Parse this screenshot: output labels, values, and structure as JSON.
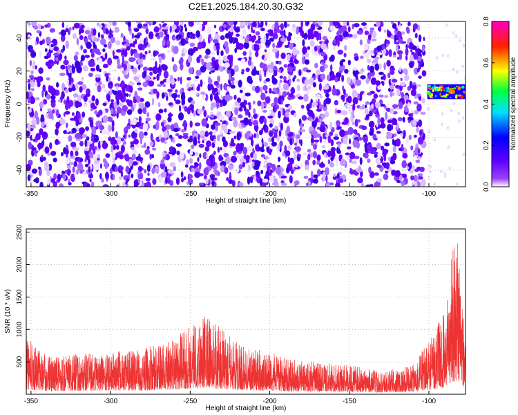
{
  "title": "C2E1.2025.184.20.30.G32",
  "chart_data": [
    {
      "type": "heatmap",
      "xlabel": "Height of straight line (km)",
      "ylabel": "Frequency (Hz)",
      "xlim": [
        -353,
        -77
      ],
      "ylim": [
        -50,
        50
      ],
      "x_ticks": [
        -350,
        -300,
        -250,
        -200,
        -150,
        -100
      ],
      "y_ticks": [
        -40,
        -20,
        0,
        20,
        40
      ],
      "grid": true,
      "colorbar": {
        "label": "Normalized spectral amplitude",
        "range": [
          0,
          0.8
        ],
        "ticks": [
          0.0,
          0.2,
          0.4,
          0.6,
          0.8
        ],
        "colors": [
          "#ffffff",
          "#6a00ff",
          "#0000ff",
          "#00ffff",
          "#00ff00",
          "#ffff00",
          "#ff0000",
          "#ff00c0"
        ]
      },
      "features": [
        {
          "x_range": [
            -353,
            -103
          ],
          "freq_range": [
            -50,
            50
          ],
          "amplitude": 0.1,
          "description_ref": "broadband noise"
        },
        {
          "x_range": [
            -101,
            -77
          ],
          "freq_range": [
            3,
            12
          ],
          "amplitude": 0.6,
          "description_ref": "signal band"
        }
      ]
    },
    {
      "type": "line",
      "xlabel": "Height of straight line (km)",
      "ylabel": "SNR (10 * v/v)",
      "xlim": [
        -353,
        -77
      ],
      "ylim": [
        0,
        2550
      ],
      "x_ticks": [
        -350,
        -300,
        -250,
        -200,
        -150,
        -100
      ],
      "y_ticks": [
        500,
        1000,
        1500,
        2000,
        2500
      ],
      "grid": true,
      "color": "#ee3333",
      "envelope": {
        "x": [
          -353,
          -340,
          -320,
          -300,
          -280,
          -260,
          -250,
          -240,
          -230,
          -220,
          -210,
          -200,
          -190,
          -170,
          -150,
          -130,
          -120,
          -110,
          -100,
          -90,
          -85,
          -82,
          -80,
          -78,
          -77
        ],
        "y": [
          900,
          600,
          620,
          650,
          700,
          850,
          1100,
          1250,
          1000,
          800,
          700,
          650,
          550,
          500,
          450,
          350,
          400,
          450,
          850,
          1300,
          2350,
          2550,
          1900,
          1250,
          1000
        ]
      }
    }
  ]
}
